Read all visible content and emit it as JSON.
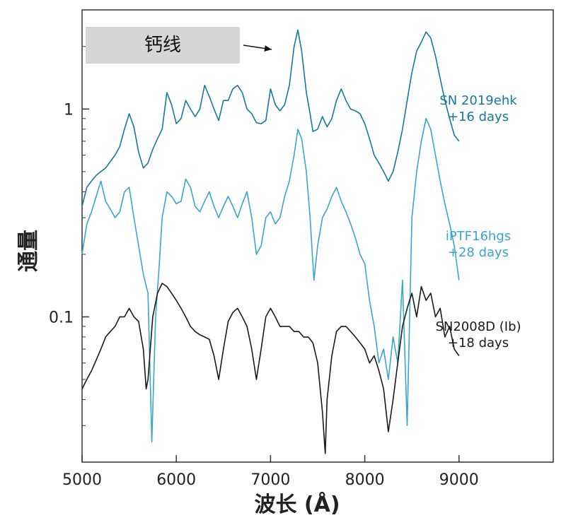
{
  "chart_data": {
    "type": "line",
    "xlabel": "波长 (Å)",
    "ylabel": "通量",
    "xlim": [
      5000,
      10000
    ],
    "ylim": [
      0.02,
      3.0
    ],
    "yscale": "log",
    "x_ticks": [
      5000,
      6000,
      7000,
      8000,
      9000
    ],
    "y_ticks": [
      {
        "value": 0.1,
        "label": "0.1"
      },
      {
        "value": 1,
        "label": "1"
      }
    ],
    "grid": false,
    "annotation": {
      "text": "钙线",
      "target_x": 7280,
      "target_y": 2.4
    },
    "series": [
      {
        "label_lines": [
          "SN 2019ehk",
          "+16 days"
        ],
        "color": "#127a9e",
        "points": [
          [
            5000,
            0.34
          ],
          [
            5050,
            0.42
          ],
          [
            5100,
            0.45
          ],
          [
            5150,
            0.48
          ],
          [
            5200,
            0.5
          ],
          [
            5250,
            0.52
          ],
          [
            5300,
            0.56
          ],
          [
            5350,
            0.6
          ],
          [
            5400,
            0.66
          ],
          [
            5450,
            0.8
          ],
          [
            5500,
            0.95
          ],
          [
            5550,
            0.82
          ],
          [
            5600,
            0.62
          ],
          [
            5650,
            0.52
          ],
          [
            5700,
            0.55
          ],
          [
            5750,
            0.64
          ],
          [
            5800,
            0.72
          ],
          [
            5850,
            0.8
          ],
          [
            5900,
            1.2
          ],
          [
            5950,
            1.05
          ],
          [
            6000,
            0.85
          ],
          [
            6050,
            0.9
          ],
          [
            6100,
            1.1
          ],
          [
            6150,
            1.0
          ],
          [
            6200,
            0.92
          ],
          [
            6250,
            1.0
          ],
          [
            6300,
            1.3
          ],
          [
            6350,
            1.15
          ],
          [
            6400,
            1.0
          ],
          [
            6450,
            0.88
          ],
          [
            6500,
            1.1
          ],
          [
            6550,
            1.1
          ],
          [
            6600,
            1.25
          ],
          [
            6650,
            1.3
          ],
          [
            6700,
            1.2
          ],
          [
            6750,
            1.0
          ],
          [
            6800,
            0.95
          ],
          [
            6850,
            0.86
          ],
          [
            6900,
            0.85
          ],
          [
            6950,
            0.88
          ],
          [
            7000,
            1.25
          ],
          [
            7050,
            1.05
          ],
          [
            7100,
            0.98
          ],
          [
            7150,
            1.05
          ],
          [
            7200,
            1.3
          ],
          [
            7250,
            2.0
          ],
          [
            7290,
            2.4
          ],
          [
            7330,
            1.9
          ],
          [
            7380,
            1.2
          ],
          [
            7420,
            0.95
          ],
          [
            7450,
            0.78
          ],
          [
            7500,
            0.8
          ],
          [
            7550,
            0.92
          ],
          [
            7600,
            0.82
          ],
          [
            7650,
            0.9
          ],
          [
            7700,
            1.1
          ],
          [
            7750,
            1.25
          ],
          [
            7800,
            1.1
          ],
          [
            7850,
            1.0
          ],
          [
            7900,
            0.98
          ],
          [
            7950,
            0.95
          ],
          [
            8000,
            0.85
          ],
          [
            8050,
            0.72
          ],
          [
            8100,
            0.6
          ],
          [
            8150,
            0.55
          ],
          [
            8200,
            0.5
          ],
          [
            8250,
            0.45
          ],
          [
            8300,
            0.5
          ],
          [
            8350,
            0.62
          ],
          [
            8400,
            0.8
          ],
          [
            8450,
            1.1
          ],
          [
            8500,
            1.5
          ],
          [
            8550,
            1.9
          ],
          [
            8600,
            2.1
          ],
          [
            8650,
            2.35
          ],
          [
            8700,
            2.2
          ],
          [
            8750,
            1.8
          ],
          [
            8800,
            1.4
          ],
          [
            8850,
            1.1
          ],
          [
            8900,
            0.9
          ],
          [
            8950,
            0.75
          ],
          [
            9000,
            0.7
          ]
        ]
      },
      {
        "label_lines": [
          "iPTF16hgs",
          "+28 days"
        ],
        "color": "#3aa5cd",
        "points": [
          [
            5000,
            0.2
          ],
          [
            5050,
            0.28
          ],
          [
            5100,
            0.32
          ],
          [
            5150,
            0.38
          ],
          [
            5200,
            0.45
          ],
          [
            5250,
            0.36
          ],
          [
            5300,
            0.33
          ],
          [
            5350,
            0.3
          ],
          [
            5400,
            0.32
          ],
          [
            5450,
            0.4
          ],
          [
            5500,
            0.42
          ],
          [
            5550,
            0.3
          ],
          [
            5600,
            0.22
          ],
          [
            5650,
            0.16
          ],
          [
            5700,
            0.13
          ],
          [
            5740,
            0.025
          ],
          [
            5780,
            0.1
          ],
          [
            5820,
            0.18
          ],
          [
            5850,
            0.3
          ],
          [
            5900,
            0.4
          ],
          [
            5950,
            0.38
          ],
          [
            6000,
            0.35
          ],
          [
            6050,
            0.36
          ],
          [
            6100,
            0.46
          ],
          [
            6150,
            0.42
          ],
          [
            6200,
            0.34
          ],
          [
            6250,
            0.32
          ],
          [
            6300,
            0.36
          ],
          [
            6350,
            0.4
          ],
          [
            6400,
            0.34
          ],
          [
            6450,
            0.3
          ],
          [
            6500,
            0.34
          ],
          [
            6550,
            0.38
          ],
          [
            6600,
            0.34
          ],
          [
            6650,
            0.3
          ],
          [
            6700,
            0.35
          ],
          [
            6750,
            0.4
          ],
          [
            6800,
            0.3
          ],
          [
            6850,
            0.2
          ],
          [
            6900,
            0.22
          ],
          [
            6950,
            0.3
          ],
          [
            7000,
            0.32
          ],
          [
            7050,
            0.28
          ],
          [
            7100,
            0.3
          ],
          [
            7150,
            0.38
          ],
          [
            7200,
            0.45
          ],
          [
            7250,
            0.6
          ],
          [
            7290,
            0.8
          ],
          [
            7330,
            0.72
          ],
          [
            7380,
            0.5
          ],
          [
            7420,
            0.3
          ],
          [
            7460,
            0.15
          ],
          [
            7500,
            0.22
          ],
          [
            7550,
            0.3
          ],
          [
            7600,
            0.33
          ],
          [
            7650,
            0.38
          ],
          [
            7700,
            0.42
          ],
          [
            7750,
            0.36
          ],
          [
            7800,
            0.32
          ],
          [
            7850,
            0.28
          ],
          [
            7900,
            0.24
          ],
          [
            7950,
            0.2
          ],
          [
            8000,
            0.18
          ],
          [
            8050,
            0.12
          ],
          [
            8100,
            0.09
          ],
          [
            8150,
            0.06
          ],
          [
            8200,
            0.07
          ],
          [
            8250,
            0.05
          ],
          [
            8300,
            0.08
          ],
          [
            8350,
            0.06
          ],
          [
            8400,
            0.15
          ],
          [
            8450,
            0.03
          ],
          [
            8500,
            0.3
          ],
          [
            8550,
            0.5
          ],
          [
            8600,
            0.7
          ],
          [
            8650,
            0.9
          ],
          [
            8700,
            0.8
          ],
          [
            8750,
            0.6
          ],
          [
            8800,
            0.45
          ],
          [
            8850,
            0.35
          ],
          [
            8900,
            0.28
          ],
          [
            8950,
            0.22
          ],
          [
            9000,
            0.15
          ]
        ]
      },
      {
        "label_lines": [
          "SN2008D (Ib)",
          "+18 days"
        ],
        "color": "#1a1a1a",
        "points": [
          [
            5000,
            0.045
          ],
          [
            5050,
            0.05
          ],
          [
            5100,
            0.055
          ],
          [
            5150,
            0.062
          ],
          [
            5200,
            0.07
          ],
          [
            5250,
            0.08
          ],
          [
            5300,
            0.085
          ],
          [
            5350,
            0.09
          ],
          [
            5400,
            0.1
          ],
          [
            5450,
            0.1
          ],
          [
            5500,
            0.11
          ],
          [
            5550,
            0.1
          ],
          [
            5600,
            0.095
          ],
          [
            5650,
            0.07
          ],
          [
            5680,
            0.045
          ],
          [
            5700,
            0.05
          ],
          [
            5750,
            0.1
          ],
          [
            5800,
            0.13
          ],
          [
            5850,
            0.145
          ],
          [
            5900,
            0.14
          ],
          [
            5950,
            0.13
          ],
          [
            6000,
            0.12
          ],
          [
            6050,
            0.11
          ],
          [
            6100,
            0.1
          ],
          [
            6150,
            0.09
          ],
          [
            6200,
            0.085
          ],
          [
            6250,
            0.082
          ],
          [
            6300,
            0.08
          ],
          [
            6350,
            0.078
          ],
          [
            6400,
            0.065
          ],
          [
            6450,
            0.05
          ],
          [
            6500,
            0.07
          ],
          [
            6550,
            0.095
          ],
          [
            6600,
            0.105
          ],
          [
            6650,
            0.11
          ],
          [
            6700,
            0.1
          ],
          [
            6750,
            0.09
          ],
          [
            6800,
            0.07
          ],
          [
            6850,
            0.05
          ],
          [
            6900,
            0.07
          ],
          [
            6950,
            0.1
          ],
          [
            7000,
            0.11
          ],
          [
            7050,
            0.1
          ],
          [
            7100,
            0.09
          ],
          [
            7150,
            0.09
          ],
          [
            7200,
            0.09
          ],
          [
            7250,
            0.085
          ],
          [
            7300,
            0.085
          ],
          [
            7350,
            0.08
          ],
          [
            7400,
            0.08
          ],
          [
            7450,
            0.075
          ],
          [
            7500,
            0.06
          ],
          [
            7550,
            0.035
          ],
          [
            7580,
            0.022
          ],
          [
            7600,
            0.04
          ],
          [
            7650,
            0.065
          ],
          [
            7700,
            0.085
          ],
          [
            7750,
            0.09
          ],
          [
            7800,
            0.09
          ],
          [
            7850,
            0.085
          ],
          [
            7900,
            0.08
          ],
          [
            7950,
            0.075
          ],
          [
            8000,
            0.07
          ],
          [
            8050,
            0.06
          ],
          [
            8100,
            0.065
          ],
          [
            8150,
            0.055
          ],
          [
            8200,
            0.045
          ],
          [
            8250,
            0.028
          ],
          [
            8300,
            0.04
          ],
          [
            8350,
            0.06
          ],
          [
            8400,
            0.09
          ],
          [
            8450,
            0.11
          ],
          [
            8500,
            0.13
          ],
          [
            8550,
            0.1
          ],
          [
            8600,
            0.14
          ],
          [
            8650,
            0.12
          ],
          [
            8700,
            0.13
          ],
          [
            8750,
            0.1
          ],
          [
            8800,
            0.11
          ],
          [
            8850,
            0.08
          ],
          [
            8900,
            0.09
          ],
          [
            8950,
            0.07
          ],
          [
            9000,
            0.065
          ]
        ]
      }
    ]
  }
}
